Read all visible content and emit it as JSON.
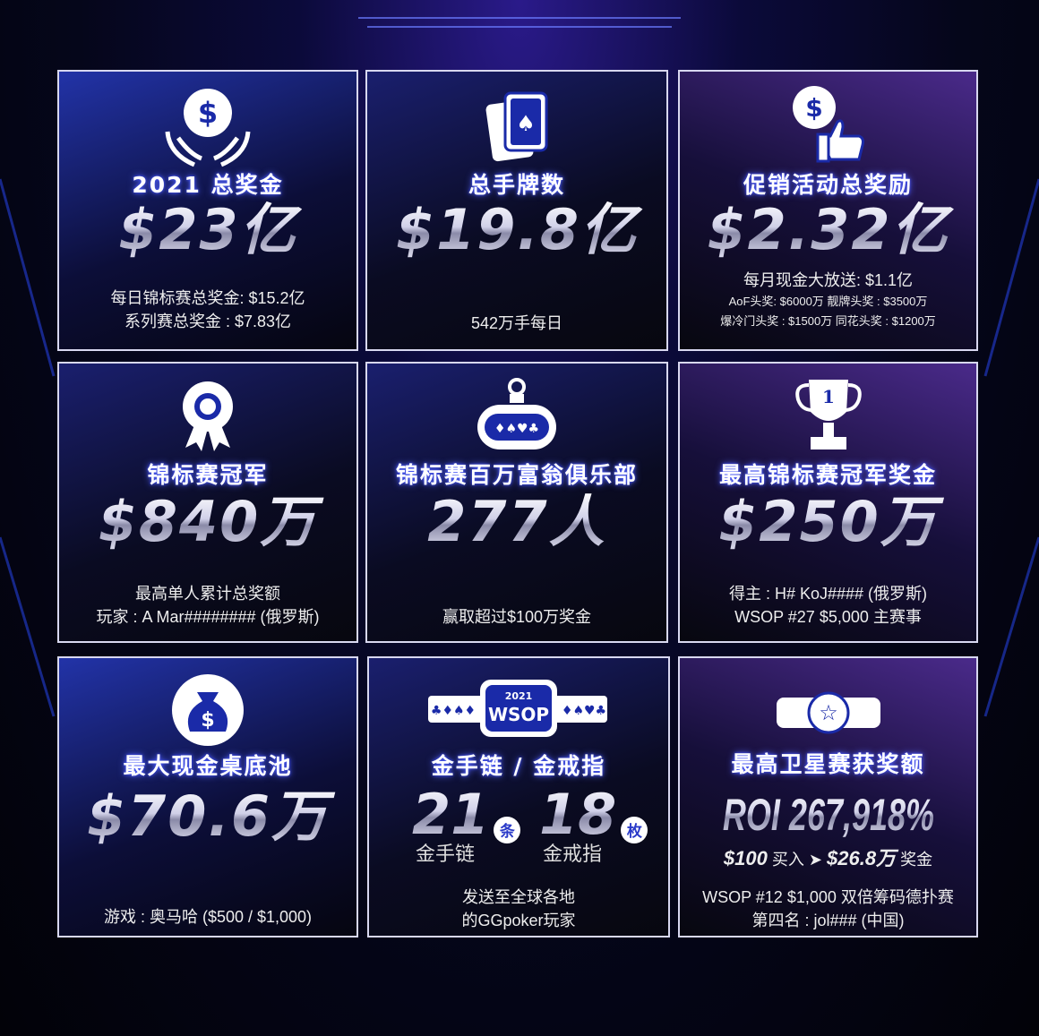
{
  "cards": [
    {
      "icon": "money-hands-icon",
      "title": "2021 总奖金",
      "value": "$23亿",
      "lines": [
        "每日锦标赛总奖金: $15.2亿",
        "系列赛总奖金 : $7.83亿"
      ]
    },
    {
      "icon": "playing-cards-icon",
      "title": "总手牌数",
      "value": "$19.8亿",
      "lines": [
        "542万手每日"
      ]
    },
    {
      "icon": "dollar-thumbs-up-icon",
      "title": "促销活动总奖励",
      "value": "$2.32亿",
      "lines": [
        "每月现金大放送: $1.1亿",
        "AoF头奖: $6000万 靓牌头奖 : $3500万",
        "爆冷门头奖 : $1500万 同花头奖 : $1200万"
      ]
    },
    {
      "icon": "award-medal-icon",
      "title": "锦标赛冠军",
      "value": "$840万",
      "lines": [
        "最高单人累计总奖额",
        "玩家 : A Mar######## (俄罗斯)"
      ]
    },
    {
      "icon": "poker-table-icon",
      "title": "锦标赛百万富翁俱乐部",
      "value": "277人",
      "lines": [
        "赢取超过$100万奖金"
      ]
    },
    {
      "icon": "trophy-icon",
      "icon_text": "1",
      "title": "最高锦标赛冠军奖金",
      "value": "$250万",
      "lines": [
        "得主 : H# KoJ#### (俄罗斯)",
        "WSOP #27 $5,000 主赛事"
      ]
    },
    {
      "icon": "money-bag-icon",
      "title": "最大现金桌底池",
      "value": "$70.6万",
      "lines": [
        "游戏 : 奥马哈 ($500 / $1,000)"
      ]
    },
    {
      "icon": "wsop-bracelet-icon",
      "icon_text": [
        "2021",
        "WSOP"
      ],
      "title": "金手链 / 金戒指",
      "stats": [
        {
          "value": "21",
          "unit": "条",
          "label": "金手链"
        },
        {
          "value": "18",
          "unit": "枚",
          "label": "金戒指"
        }
      ],
      "lines": [
        "发送至全球各地",
        "的GGpoker玩家"
      ]
    },
    {
      "icon": "star-belt-icon",
      "title": "最高卫星赛获奖额",
      "value": "ROI 267,918%",
      "buyin": {
        "from": "$100",
        "from_label": "买入",
        "arrow": "➤",
        "to": "$26.8万",
        "to_label": "奖金"
      },
      "lines": [
        "WSOP #12  $1,000 双倍筹码德扑赛",
        "第四名 : jol### (中国)"
      ]
    }
  ]
}
